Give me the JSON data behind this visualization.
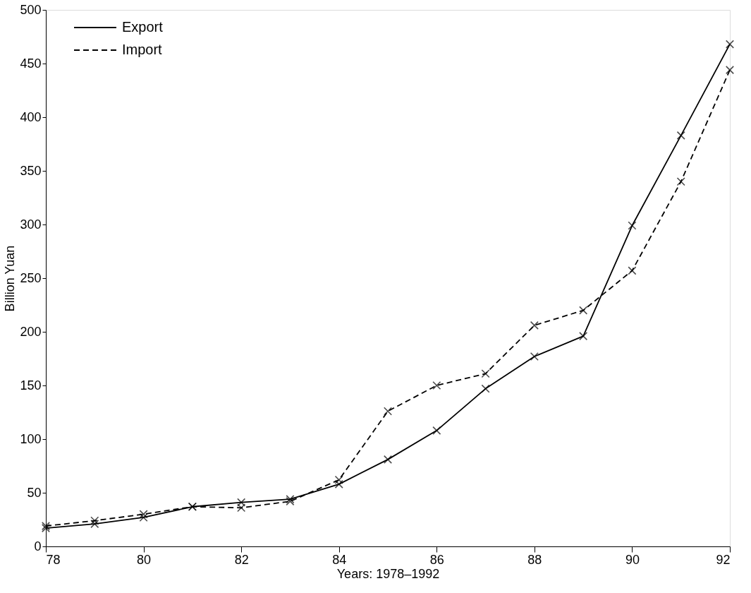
{
  "chart_data": {
    "type": "line",
    "xlabel": "Years: 1978–1992",
    "ylabel": "Billion Yuan",
    "x": [
      78,
      79,
      80,
      81,
      82,
      83,
      84,
      85,
      86,
      87,
      88,
      89,
      90,
      91,
      92
    ],
    "series": [
      {
        "name": "Export",
        "color": "#000000",
        "line_style": "solid",
        "values": [
          17,
          21,
          27,
          37,
          41,
          44,
          58,
          81,
          108,
          147,
          177,
          196,
          299,
          383,
          468
        ]
      },
      {
        "name": "Import",
        "color": "#000000",
        "line_style": "dashed",
        "values": [
          19,
          24,
          30,
          37,
          36,
          42,
          62,
          126,
          150,
          161,
          206,
          220,
          257,
          340,
          444
        ]
      }
    ],
    "xlim": [
      78,
      92
    ],
    "ylim": [
      0,
      500
    ],
    "xticks": [
      78,
      80,
      82,
      84,
      86,
      88,
      90,
      92
    ],
    "yticks": [
      0,
      50,
      100,
      150,
      200,
      250,
      300,
      350,
      400,
      450,
      500
    ],
    "marker": "cross",
    "legend": "top left",
    "grid": false
  }
}
